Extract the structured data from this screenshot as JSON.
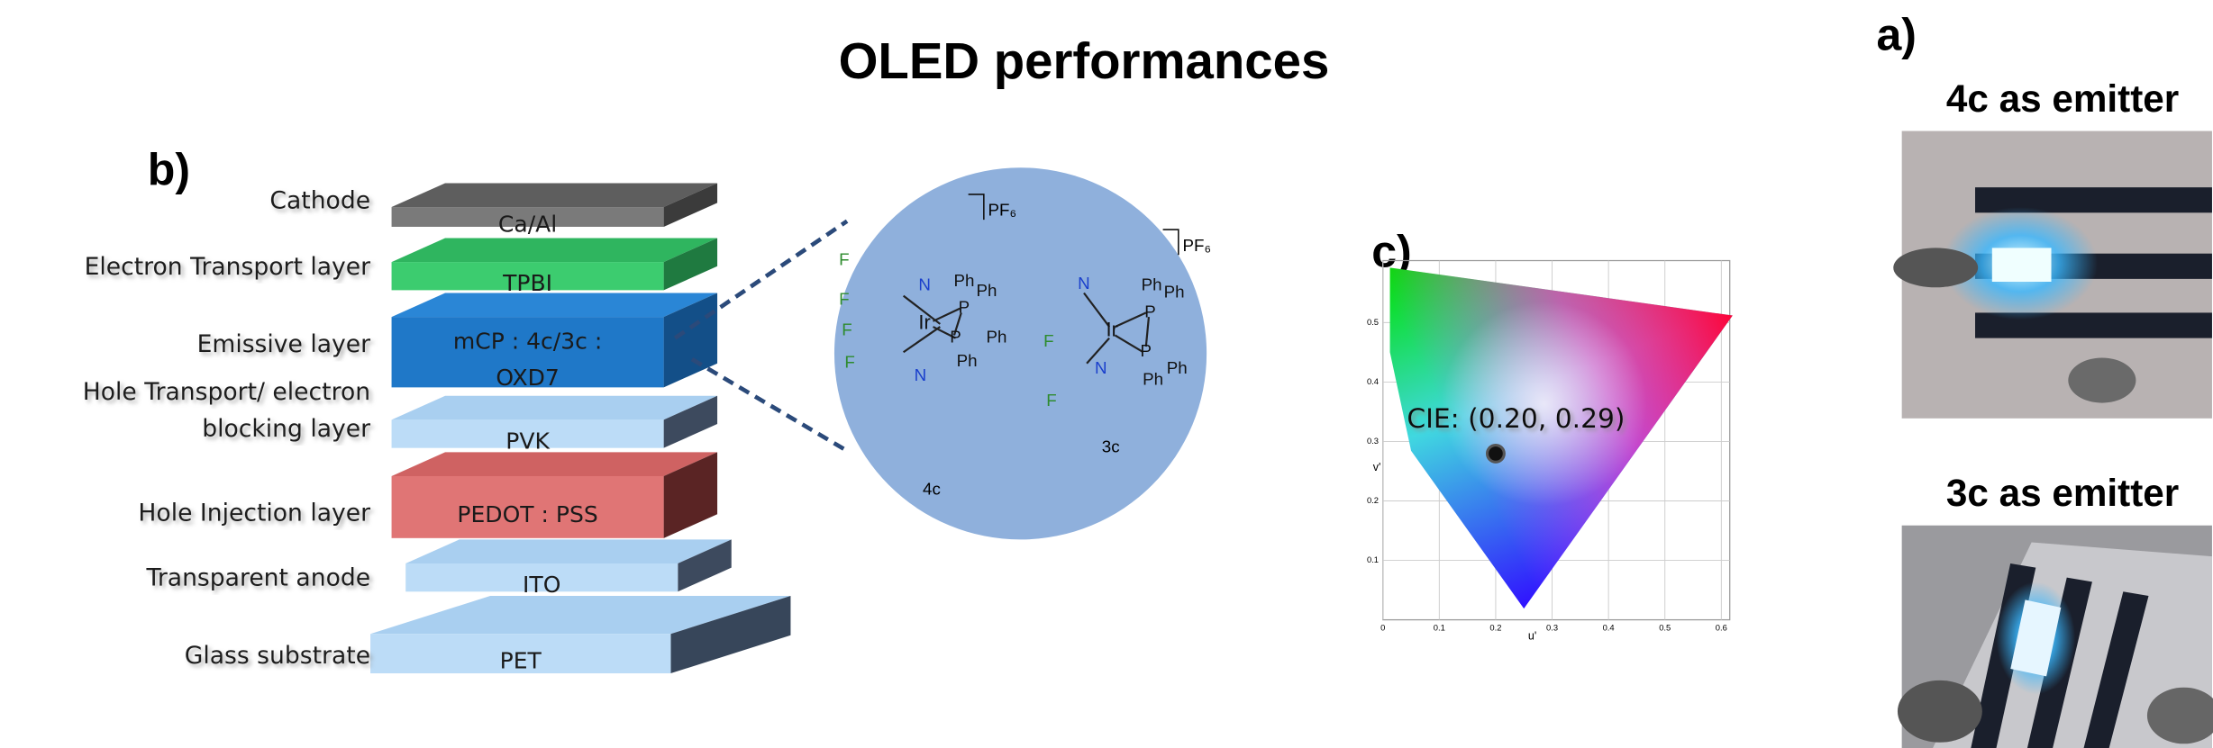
{
  "title": "OLED performances",
  "panels": {
    "a": "a)",
    "b": "b)",
    "c": "c)"
  },
  "stack": {
    "layers": [
      {
        "label": [
          "Cathode"
        ],
        "material": [
          "Ca/Al"
        ]
      },
      {
        "label": [
          "Electron Transport layer"
        ],
        "material": [
          "TPBI"
        ]
      },
      {
        "label": [
          "Emissive layer"
        ],
        "material": [
          "mCP : 4c/3c :",
          "OXD7"
        ]
      },
      {
        "label": [
          "Hole Transport/ electron",
          "blocking layer"
        ],
        "material": [
          "PVK"
        ]
      },
      {
        "label": [
          "Hole Injection layer"
        ],
        "material": [
          "PEDOT : PSS"
        ]
      },
      {
        "label": [
          "Transparent anode"
        ],
        "material": [
          "ITO"
        ]
      },
      {
        "label": [
          "Glass substrate"
        ],
        "material": [
          "PET"
        ]
      }
    ]
  },
  "molecules": [
    {
      "name": "4c",
      "counterion": "PF₆",
      "atoms": [
        "F",
        "F",
        "F",
        "F",
        "N",
        "N",
        "Ir",
        "P",
        "P",
        "Ph",
        "Ph",
        "Ph",
        "Ph"
      ]
    },
    {
      "name": "3c",
      "counterion": "PF₆",
      "atoms": [
        "N",
        "N",
        "Ir",
        "P",
        "P",
        "Ph",
        "Ph",
        "Ph",
        "Ph",
        "F",
        "F"
      ]
    }
  ],
  "cie": {
    "annotation": "CIE: (0.20, 0.29)",
    "xlabel": "u'",
    "ylabel": "v'",
    "xticks": [
      0,
      0.1,
      0.2,
      0.3,
      0.4,
      0.5,
      0.6
    ],
    "yticks": [
      0.1,
      0.2,
      0.3,
      0.4,
      0.5
    ]
  },
  "photos": [
    {
      "caption": "4c as emitter"
    },
    {
      "caption": "3c as emitter"
    }
  ]
}
